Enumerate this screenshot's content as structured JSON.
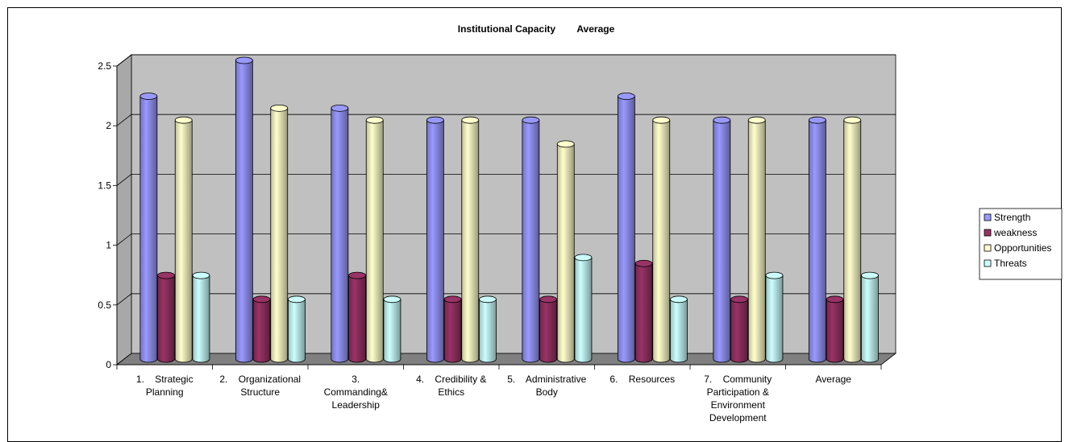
{
  "chart_data": {
    "type": "bar",
    "title": "Institutional Capacity        Average",
    "xlabel": "",
    "ylabel": "",
    "ylim": [
      0,
      2.5
    ],
    "yticks": [
      "0",
      "0.5",
      "1",
      "1.5",
      "2",
      "2.5"
    ],
    "grid": true,
    "legend_position": "right",
    "categories": [
      [
        "1.    Strategic",
        "Planning"
      ],
      [
        "2.    Organizational",
        "Structure"
      ],
      [
        "3.",
        "Commanding&",
        "Leadership"
      ],
      [
        "4.    Credibility &",
        "Ethics"
      ],
      [
        "5.    Administrative",
        "Body"
      ],
      [
        "6.    Resources"
      ],
      [
        "7.    Community",
        "Participation &",
        "Environment",
        "Development"
      ],
      [
        "Average"
      ]
    ],
    "series": [
      {
        "name": "Strength",
        "color": "#9999ff",
        "values": [
          2.2,
          2.5,
          2.1,
          2.0,
          2.0,
          2.2,
          2.0,
          2.0
        ]
      },
      {
        "name": "weakness",
        "color": "#993366",
        "values": [
          0.7,
          0.5,
          0.7,
          0.5,
          0.5,
          0.8,
          0.5,
          0.5
        ]
      },
      {
        "name": "Opportunities",
        "color": "#ffffcc",
        "values": [
          2.0,
          2.1,
          2.0,
          2.0,
          1.8,
          2.0,
          2.0,
          2.0
        ]
      },
      {
        "name": "Threats",
        "color": "#ccffff",
        "values": [
          0.7,
          0.5,
          0.5,
          0.5,
          0.85,
          0.5,
          0.7,
          0.7
        ]
      }
    ],
    "colors": {
      "wall": "#c0c0c0",
      "floor": "#808080"
    }
  }
}
